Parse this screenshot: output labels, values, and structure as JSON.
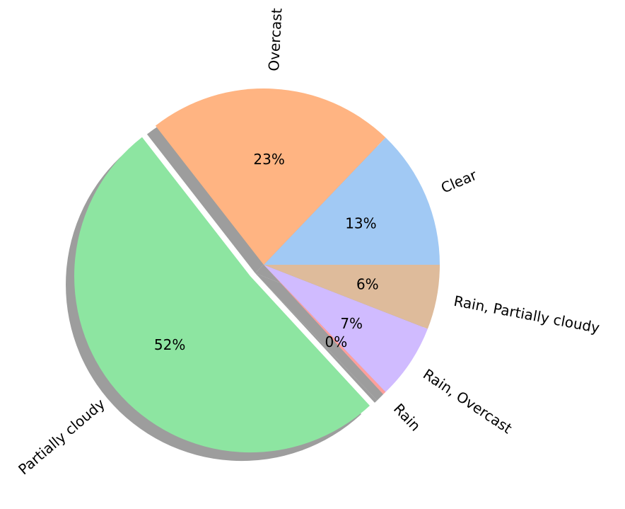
{
  "chart_data": {
    "type": "pie",
    "title": "",
    "shadow": true,
    "start_angle_deg": 0,
    "direction": "counterclockwise",
    "labels": [
      "Clear",
      "Overcast",
      "Partially cloudy",
      "Rain",
      "Rain, Overcast",
      "Rain, Partially cloudy"
    ],
    "values": [
      13,
      23,
      52,
      0.3,
      7,
      6
    ],
    "percent_labels": [
      "13%",
      "23%",
      "52%",
      "0%",
      "7%",
      "6%"
    ],
    "explode": [
      0,
      0,
      0.1,
      0,
      0,
      0
    ],
    "colors": [
      "#a1c9f4",
      "#ffb482",
      "#8de5a1",
      "#ff9f9b",
      "#d0bbff",
      "#debb9b"
    ],
    "shadow_color": "#8c8c8c"
  }
}
